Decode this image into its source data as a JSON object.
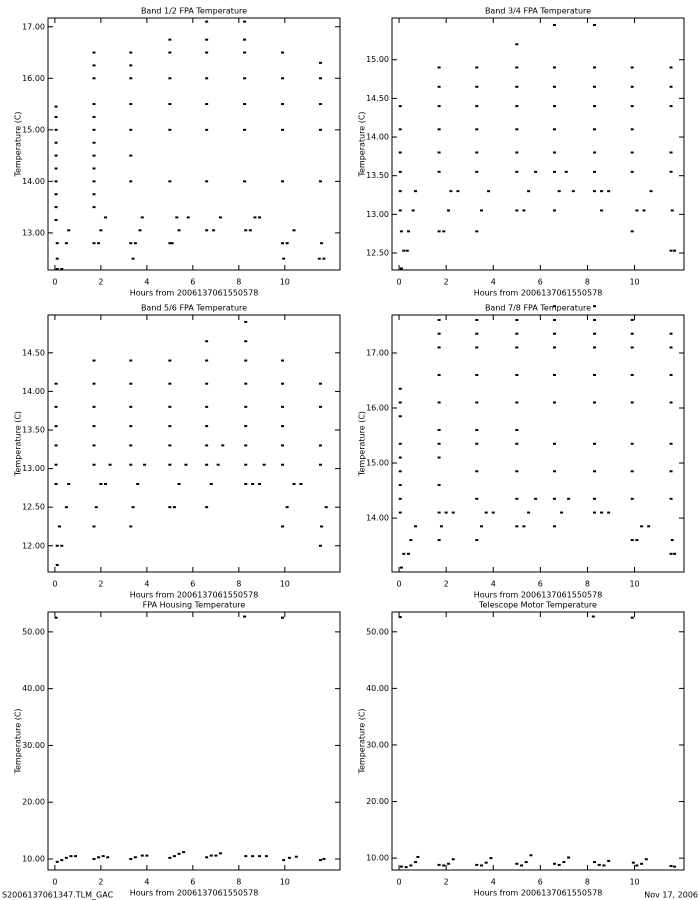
{
  "chart_data": [
    {
      "type": "scatter",
      "title": "Band 1/2 FPA Temperature",
      "xlabel": "Hours from 2006137061550578",
      "ylabel": "Temperature (C)",
      "color": "#000000",
      "xlim": [
        -0.3,
        12.4
      ],
      "ylim": [
        12.28,
        17.17
      ],
      "xticks": [
        0,
        2,
        4,
        6,
        8,
        10
      ],
      "yticks": [
        {
          "value": 13,
          "label": "13.00"
        },
        {
          "value": 14,
          "label": "14.00"
        },
        {
          "value": 15,
          "label": "15.00"
        },
        {
          "value": 16,
          "label": "16.00"
        },
        {
          "value": 17,
          "label": "17.00"
        }
      ],
      "x": [
        0.05,
        0.05,
        0.05,
        0.05,
        0.05,
        0.05,
        0.05,
        0.05,
        0.05,
        0.05,
        1.7,
        1.7,
        1.7,
        1.7,
        1.7,
        1.7,
        1.7,
        1.7,
        1.7,
        1.7,
        1.7,
        1.7,
        3.3,
        3.3,
        3.3,
        3.3,
        3.3,
        3.3,
        3.3,
        5,
        5,
        5,
        5,
        5,
        5,
        6.6,
        6.6,
        6.6,
        6.6,
        6.6,
        6.6,
        6.6,
        8.25,
        8.25,
        8.25,
        8.25,
        8.25,
        8.25,
        8.25,
        9.9,
        9.9,
        9.9,
        9.9,
        9.9,
        11.55,
        11.55,
        11.55,
        11.55,
        11.55,
        0.1,
        0.3,
        0.1,
        0.1,
        0.5,
        0.6,
        1.7,
        1.9,
        2,
        2.2,
        3.3,
        3.5,
        3.4,
        3.7,
        3.8,
        5,
        5.1,
        5.3,
        5.4,
        5.8,
        6.6,
        6.9,
        7.2,
        8.3,
        8.5,
        8.7,
        8.9,
        9.9,
        10.1,
        9.95,
        10.4,
        11.5,
        11.7,
        11.6
      ],
      "values": [
        13.25,
        13.5,
        13.75,
        14,
        14.25,
        14.5,
        14.75,
        15,
        15.25,
        15.45,
        13.5,
        13.75,
        14,
        14.25,
        14.5,
        14.75,
        15,
        15.25,
        15.5,
        16,
        16.25,
        16.5,
        14,
        14.5,
        15,
        15.5,
        16,
        16.25,
        16.5,
        14,
        15,
        15.5,
        16,
        16.5,
        16.75,
        14,
        15,
        15.5,
        16,
        16.5,
        16.75,
        17.1,
        14,
        15,
        15.5,
        16,
        16.5,
        16.75,
        17.1,
        14,
        15,
        15.5,
        16,
        16.5,
        14,
        15,
        15.5,
        16,
        16.3,
        12.3,
        12.3,
        12.5,
        12.8,
        12.8,
        13.05,
        12.8,
        12.8,
        13.05,
        13.3,
        12.8,
        12.8,
        12.5,
        13.05,
        13.3,
        12.8,
        12.8,
        13.3,
        13.05,
        13.3,
        13.05,
        13.05,
        13.3,
        13.05,
        13.05,
        13.3,
        13.3,
        12.8,
        12.8,
        12.5,
        13.05,
        12.5,
        12.5,
        12.8
      ]
    },
    {
      "type": "scatter",
      "title": "Band 3/4 FPA Temperature",
      "xlabel": "Hours from 2006137061550578",
      "ylabel": "Temperature (C)",
      "color": "#000000",
      "xlim": [
        -0.3,
        12.1
      ],
      "ylim": [
        12.28,
        15.54
      ],
      "xticks": [
        0,
        2,
        4,
        6,
        8,
        10
      ],
      "yticks": [
        {
          "value": 12.5,
          "label": "12.50"
        },
        {
          "value": 13,
          "label": "13.00"
        },
        {
          "value": 13.5,
          "label": "13.50"
        },
        {
          "value": 14,
          "label": "14.00"
        },
        {
          "value": 14.5,
          "label": "14.50"
        },
        {
          "value": 15,
          "label": "15.00"
        }
      ],
      "x": [
        0.05,
        0.05,
        0.05,
        0.05,
        0.05,
        0.05,
        1.7,
        1.7,
        1.7,
        1.7,
        1.7,
        1.7,
        3.3,
        3.3,
        3.3,
        3.3,
        3.3,
        3.3,
        5,
        5,
        5,
        5,
        5,
        5,
        5,
        6.6,
        6.6,
        6.6,
        6.6,
        6.6,
        6.6,
        6.6,
        8.3,
        8.3,
        8.3,
        8.3,
        8.3,
        8.3,
        8.3,
        9.9,
        9.9,
        9.9,
        9.9,
        9.9,
        9.9,
        11.55,
        11.55,
        11.55,
        11.55,
        11.55,
        0.1,
        0.2,
        0.35,
        0.1,
        0.4,
        0.6,
        0.7,
        1.7,
        1.9,
        2.1,
        2.2,
        2.5,
        3.3,
        3.5,
        3.8,
        5,
        5.3,
        5.5,
        5.8,
        6.6,
        6.8,
        7.1,
        7.4,
        8.3,
        8.6,
        8.9,
        8.6,
        9.9,
        10.1,
        10.4,
        10.7,
        11.55,
        11.7,
        11.6
      ],
      "values": [
        13.05,
        13.3,
        13.55,
        13.8,
        14.1,
        14.4,
        13.55,
        13.8,
        14.1,
        14.4,
        14.65,
        14.9,
        13.55,
        13.8,
        14.1,
        14.4,
        14.65,
        14.9,
        13.55,
        13.8,
        14.1,
        14.4,
        14.65,
        14.9,
        15.2,
        13.55,
        13.8,
        14.1,
        14.4,
        14.65,
        14.9,
        15.45,
        13.55,
        13.8,
        14.1,
        14.4,
        14.65,
        14.9,
        15.45,
        13.55,
        13.8,
        14.1,
        14.4,
        14.65,
        14.9,
        13.55,
        13.8,
        14.4,
        14.65,
        14.9,
        12.3,
        12.53,
        12.53,
        12.78,
        12.78,
        13.05,
        13.3,
        12.78,
        12.78,
        13.05,
        13.3,
        13.3,
        12.78,
        13.05,
        13.3,
        13.05,
        13.05,
        13.3,
        13.55,
        13.05,
        13.3,
        13.55,
        13.3,
        13.3,
        13.3,
        13.3,
        13.05,
        12.78,
        13.05,
        13.05,
        13.3,
        12.53,
        12.53,
        13.05
      ]
    },
    {
      "type": "scatter",
      "title": "Band 5/6 FPA Temperature",
      "xlabel": "Hours from 2006137061550578",
      "ylabel": "Temperature (C)",
      "color": "#000000",
      "xlim": [
        -0.3,
        12.4
      ],
      "ylim": [
        11.66,
        14.99
      ],
      "xticks": [
        0,
        2,
        4,
        6,
        8,
        10
      ],
      "yticks": [
        {
          "value": 12,
          "label": "12.00"
        },
        {
          "value": 12.5,
          "label": "12.50"
        },
        {
          "value": 13,
          "label": "13.00"
        },
        {
          "value": 13.5,
          "label": "13.50"
        },
        {
          "value": 14,
          "label": "14.00"
        },
        {
          "value": 14.5,
          "label": "14.50"
        }
      ],
      "x": [
        0.05,
        0.05,
        0.05,
        0.05,
        0.05,
        0.05,
        1.7,
        1.7,
        1.7,
        1.7,
        1.7,
        1.7,
        3.3,
        3.3,
        3.3,
        3.3,
        3.3,
        3.3,
        5,
        5,
        5,
        5,
        5,
        5,
        6.6,
        6.6,
        6.6,
        6.6,
        6.6,
        6.6,
        6.6,
        8.3,
        8.3,
        8.3,
        8.3,
        8.3,
        8.3,
        8.3,
        8.3,
        9.9,
        9.9,
        9.9,
        9.9,
        9.9,
        9.9,
        11.55,
        11.55,
        11.55,
        11.55,
        0.1,
        0.1,
        0.3,
        0.2,
        0.5,
        0.6,
        1.7,
        1.8,
        2,
        2.2,
        2.4,
        3.3,
        3.4,
        3.6,
        3.9,
        5,
        5.2,
        5.4,
        5.7,
        6.6,
        6.8,
        7.1,
        7.3,
        8.3,
        8.6,
        8.9,
        9.1,
        9.9,
        10.1,
        10.4,
        10.7,
        11.55,
        11.6,
        11.8
      ],
      "values": [
        12.8,
        13.05,
        13.3,
        13.55,
        13.8,
        14.1,
        13.05,
        13.3,
        13.55,
        13.8,
        14.1,
        14.4,
        13.05,
        13.3,
        13.55,
        13.8,
        14.1,
        14.4,
        13.05,
        13.3,
        13.55,
        13.8,
        14.1,
        14.4,
        13.05,
        13.3,
        13.55,
        13.8,
        14.1,
        14.4,
        14.65,
        13.05,
        13.3,
        13.55,
        13.8,
        14.1,
        14.4,
        14.65,
        14.9,
        13.05,
        13.3,
        13.55,
        13.8,
        14.1,
        14.4,
        13.05,
        13.3,
        13.8,
        14.1,
        11.75,
        12,
        12,
        12.25,
        12.5,
        12.8,
        12.25,
        12.5,
        12.8,
        12.8,
        13.05,
        12.25,
        12.5,
        12.8,
        13.05,
        12.5,
        12.5,
        12.8,
        13.05,
        12.5,
        12.8,
        13.05,
        13.3,
        12.8,
        12.8,
        12.8,
        13.05,
        12.25,
        12.5,
        12.8,
        12.8,
        12,
        12.25,
        12.5
      ]
    },
    {
      "type": "scatter",
      "title": "Band 7/8 FPA Temperature",
      "xlabel": "Hours from 2006137061550578",
      "ylabel": "Temperature (C)",
      "color": "#000000",
      "xlim": [
        -0.3,
        12.1
      ],
      "ylim": [
        13.02,
        17.69
      ],
      "xticks": [
        0,
        2,
        4,
        6,
        8,
        10
      ],
      "yticks": [
        {
          "value": 14,
          "label": "14.00"
        },
        {
          "value": 15,
          "label": "15.00"
        },
        {
          "value": 16,
          "label": "16.00"
        },
        {
          "value": 17,
          "label": "17.00"
        }
      ],
      "x": [
        0.05,
        0.05,
        0.05,
        0.05,
        0.05,
        0.05,
        0.05,
        0.05,
        0.05,
        1.7,
        1.7,
        1.7,
        1.7,
        1.7,
        1.7,
        1.7,
        1.7,
        1.7,
        1.7,
        3.3,
        3.3,
        3.3,
        3.3,
        3.3,
        3.3,
        3.3,
        3.3,
        3.3,
        5,
        5,
        5,
        5,
        5,
        5,
        5,
        5,
        5,
        6.6,
        6.6,
        6.6,
        6.6,
        6.6,
        6.6,
        6.6,
        6.6,
        6.6,
        8.3,
        8.3,
        8.3,
        8.3,
        8.3,
        8.3,
        8.3,
        8.3,
        8.3,
        9.9,
        9.9,
        9.9,
        9.9,
        9.9,
        9.9,
        9.9,
        9.9,
        11.55,
        11.55,
        11.55,
        11.55,
        11.55,
        11.55,
        11.55,
        0.1,
        0.2,
        0.4,
        0.5,
        0.7,
        1.7,
        1.8,
        2,
        2.3,
        3.3,
        3.5,
        3.7,
        4,
        5,
        5.3,
        5.5,
        5.8,
        6.6,
        6.9,
        7.2,
        8.3,
        8.6,
        8.9,
        9.9,
        10.1,
        10.3,
        10.6,
        11.55,
        11.7,
        11.6
      ],
      "values": [
        14.1,
        14.35,
        14.6,
        14.85,
        15.1,
        15.35,
        15.85,
        16.1,
        16.35,
        14.1,
        14.6,
        15.1,
        15.35,
        15.6,
        16.1,
        16.6,
        17.1,
        17.35,
        17.6,
        14.35,
        14.85,
        15.35,
        15.6,
        16.1,
        16.6,
        17.1,
        17.35,
        17.6,
        14.35,
        14.85,
        15.35,
        15.6,
        16.1,
        16.6,
        17.1,
        17.35,
        17.6,
        14.35,
        14.85,
        15.35,
        16.1,
        16.6,
        17.1,
        17.35,
        17.6,
        17.85,
        14.35,
        14.85,
        15.35,
        16.1,
        16.6,
        17.1,
        17.35,
        17.6,
        17.85,
        14.35,
        14.85,
        15.35,
        16.1,
        16.6,
        17.1,
        17.35,
        17.6,
        14.35,
        14.85,
        15.35,
        16.1,
        16.6,
        17.1,
        17.35,
        13.1,
        13.35,
        13.35,
        13.6,
        13.85,
        13.6,
        13.85,
        14.1,
        14.1,
        13.6,
        13.85,
        14.1,
        14.1,
        13.85,
        13.85,
        14.1,
        14.35,
        13.85,
        14.1,
        14.35,
        14.1,
        14.1,
        14.1,
        13.6,
        13.6,
        13.85,
        13.85,
        13.35,
        13.35,
        13.6
      ]
    },
    {
      "type": "scatter",
      "title": "FPA Housing Temperature",
      "xlabel": "Hours from 2006137061550578",
      "ylabel": "Temperature (C)",
      "color": "#000000",
      "xlim": [
        -0.3,
        12.4
      ],
      "ylim": [
        8.06,
        53.5
      ],
      "xticks": [
        0,
        2,
        4,
        6,
        8,
        10
      ],
      "yticks": [
        {
          "value": 10,
          "label": "10.00"
        },
        {
          "value": 20,
          "label": "20.00"
        },
        {
          "value": 30,
          "label": "30.00"
        },
        {
          "value": 40,
          "label": "40.00"
        },
        {
          "value": 50,
          "label": "50.00"
        }
      ],
      "x": [
        0.05,
        0.1,
        0.3,
        0.5,
        0.7,
        0.9,
        1.7,
        1.9,
        2.1,
        2.3,
        3.3,
        3.5,
        3.8,
        4,
        5,
        5.2,
        5.4,
        5.6,
        6.6,
        6.8,
        7,
        7.2,
        8.25,
        8.3,
        8.6,
        8.9,
        9.2,
        9.9,
        9.95,
        10.2,
        10.5,
        11.55,
        11.7
      ],
      "values": [
        52.5,
        9.5,
        9.8,
        10.2,
        10.5,
        10.5,
        10,
        10.3,
        10.5,
        10.3,
        10,
        10.3,
        10.6,
        10.6,
        10.2,
        10.5,
        10.9,
        11.2,
        10.3,
        10.6,
        10.6,
        11,
        52.7,
        10.5,
        10.5,
        10.5,
        10.5,
        52.5,
        9.8,
        10.2,
        10.4,
        9.8,
        10
      ]
    },
    {
      "type": "scatter",
      "title": "Telescope Motor Temperature",
      "xlabel": "Hours from 2006137061550578",
      "ylabel": "Temperature (C)",
      "color": "#000000",
      "xlim": [
        -0.3,
        12.1
      ],
      "ylim": [
        7.9,
        53.5
      ],
      "xticks": [
        0,
        2,
        4,
        6,
        8,
        10
      ],
      "yticks": [
        {
          "value": 10,
          "label": "10.00"
        },
        {
          "value": 20,
          "label": "20.00"
        },
        {
          "value": 30,
          "label": "30.00"
        },
        {
          "value": 40,
          "label": "40.00"
        },
        {
          "value": 50,
          "label": "50.00"
        }
      ],
      "x": [
        0.05,
        0.1,
        0.3,
        0.5,
        0.7,
        0.8,
        1.7,
        1.9,
        2.1,
        2.3,
        3.3,
        3.5,
        3.7,
        3.9,
        5,
        5.2,
        5.4,
        5.6,
        6.6,
        6.8,
        7,
        7.2,
        8.25,
        8.3,
        8.5,
        8.7,
        8.9,
        9.9,
        9.95,
        10.1,
        10.3,
        10.5,
        11.55,
        11.7
      ],
      "values": [
        52.6,
        8.5,
        8.4,
        8.7,
        9.3,
        10.2,
        8.8,
        8.7,
        9,
        9.8,
        8.8,
        8.7,
        9.2,
        10,
        9,
        8.7,
        9.3,
        10.5,
        9,
        8.8,
        9.3,
        10.1,
        52.7,
        9.3,
        8.8,
        8.7,
        9.5,
        52.5,
        9.2,
        8.7,
        9,
        9.8,
        8.6,
        8.5
      ]
    }
  ],
  "footer": {
    "left": "S2006137061347.TLM_GAC",
    "right": "Nov 17, 2006"
  }
}
